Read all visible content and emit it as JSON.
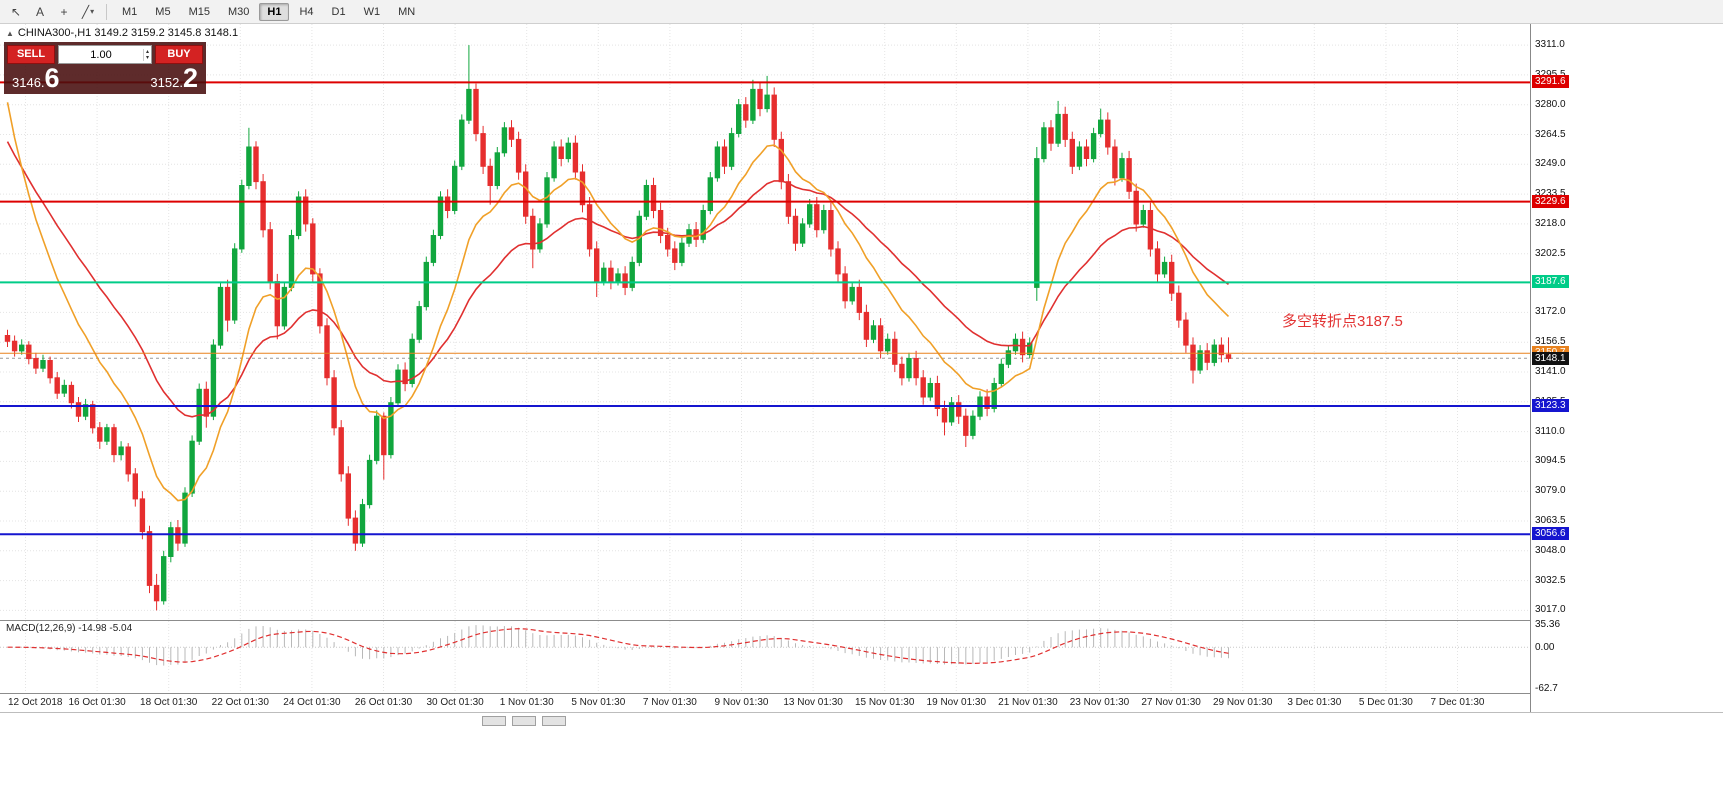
{
  "toolbar": {
    "icons": [
      {
        "name": "cursor",
        "glyph": "↖"
      },
      {
        "name": "text-tool",
        "glyph": "A"
      },
      {
        "name": "crosshair",
        "glyph": "+"
      },
      {
        "name": "trendline",
        "glyph": "╱"
      },
      {
        "name": "caret-down",
        "glyph": "▾"
      }
    ],
    "timeframes": [
      "M1",
      "M5",
      "M15",
      "M30",
      "H1",
      "H4",
      "D1",
      "W1",
      "MN"
    ],
    "active_timeframe": "H1"
  },
  "header": {
    "collapse_glyph": "▲",
    "symbol_ohlc": "CHINA300-,H1 3149.2 3159.2 3145.8 3148.1"
  },
  "trade_panel": {
    "sell_label": "SELL",
    "buy_label": "BUY",
    "volume": "1.00",
    "volume_up_glyph": "▴",
    "volume_down_glyph": "▾",
    "sell_price_small": "3146.",
    "sell_price_big": "6",
    "buy_price_small": "3152.",
    "buy_price_big": "2"
  },
  "annotation": {
    "text": "多空转折点3187.5",
    "color": "#e23333"
  },
  "chart_data": {
    "type": "candlestick",
    "symbol": "CHINA300-",
    "timeframe": "H1",
    "title": "CHINA300- H1",
    "ylim": [
      3017.0,
      3311.0
    ],
    "current_price": 3148.1,
    "colors": {
      "up": "#11a63e",
      "down": "#e62e2e",
      "ma_fast": "#f0a028",
      "ma_slow": "#e03030",
      "grid": "#e4e4e4"
    },
    "y_ticks": [
      "3311.0",
      "3295.5",
      "3280.0",
      "3264.5",
      "3249.0",
      "3233.5",
      "3218.0",
      "3202.5",
      "3172.0",
      "3156.5",
      "3141.0",
      "3125.5",
      "3110.0",
      "3094.5",
      "3079.0",
      "3063.5",
      "3048.0",
      "3032.5",
      "3017.0"
    ],
    "levels": [
      {
        "price": 3291.6,
        "label": "3291.6",
        "color": "#dd0000",
        "width": 2
      },
      {
        "price": 3229.6,
        "label": "3229.6",
        "color": "#dd0000",
        "width": 2
      },
      {
        "price": 3187.6,
        "label": "3187.6",
        "color": "#00cc88",
        "width": 2
      },
      {
        "price": 3150.7,
        "label": "3150.7",
        "color": "#e8821e",
        "width": 1
      },
      {
        "price": 3123.3,
        "label": "3123.3",
        "color": "#1515cf",
        "width": 2
      },
      {
        "price": 3056.6,
        "label": "3056.6",
        "color": "#1515cf",
        "width": 2
      }
    ],
    "current_price_badge": {
      "label": "3148.1",
      "bg": "#111111"
    },
    "x_labels": [
      "12 Oct 2018",
      "16 Oct 01:30",
      "18 Oct 01:30",
      "22 Oct 01:30",
      "24 Oct 01:30",
      "26 Oct 01:30",
      "30 Oct 01:30",
      "1 Nov 01:30",
      "5 Nov 01:30",
      "7 Nov 01:30",
      "9 Nov 01:30",
      "13 Nov 01:30",
      "15 Nov 01:30",
      "19 Nov 01:30",
      "21 Nov 01:30",
      "23 Nov 01:30",
      "27 Nov 01:30",
      "29 Nov 01:30",
      "3 Dec 01:30",
      "5 Dec 01:30",
      "7 Dec 01:30"
    ],
    "overlays": [
      {
        "name": "ma-fast",
        "color": "#f0a028",
        "period": 13
      },
      {
        "name": "ma-slow",
        "color": "#e03030",
        "period": 30
      }
    ],
    "indicator": {
      "name": "MACD",
      "label": "MACD(12,26,9) -14.98 -5.04",
      "axis_values": [
        "35.36",
        "0.00",
        "-62.7"
      ],
      "ylim": [
        -70,
        40
      ]
    },
    "ohlc": [
      [
        3160,
        3163,
        3154,
        3157
      ],
      [
        3157,
        3160,
        3149,
        3152
      ],
      [
        3152,
        3158,
        3150,
        3155
      ],
      [
        3155,
        3157,
        3145,
        3148
      ],
      [
        3148,
        3151,
        3140,
        3143
      ],
      [
        3143,
        3150,
        3141,
        3147
      ],
      [
        3147,
        3149,
        3135,
        3138
      ],
      [
        3138,
        3141,
        3127,
        3130
      ],
      [
        3130,
        3137,
        3128,
        3134
      ],
      [
        3134,
        3136,
        3122,
        3125
      ],
      [
        3125,
        3128,
        3115,
        3118
      ],
      [
        3118,
        3127,
        3116,
        3124
      ],
      [
        3124,
        3126,
        3109,
        3112
      ],
      [
        3112,
        3115,
        3101,
        3105
      ],
      [
        3105,
        3114,
        3103,
        3112
      ],
      [
        3112,
        3114,
        3094,
        3098
      ],
      [
        3098,
        3105,
        3095,
        3102
      ],
      [
        3102,
        3104,
        3084,
        3088
      ],
      [
        3088,
        3091,
        3071,
        3075
      ],
      [
        3075,
        3079,
        3054,
        3058
      ],
      [
        3058,
        3061,
        3026,
        3030
      ],
      [
        3030,
        3036,
        3017,
        3022
      ],
      [
        3022,
        3048,
        3020,
        3045
      ],
      [
        3045,
        3063,
        3042,
        3060
      ],
      [
        3060,
        3064,
        3048,
        3052
      ],
      [
        3052,
        3081,
        3050,
        3078
      ],
      [
        3078,
        3108,
        3076,
        3105
      ],
      [
        3105,
        3135,
        3103,
        3132
      ],
      [
        3132,
        3136,
        3112,
        3118
      ],
      [
        3118,
        3158,
        3116,
        3155
      ],
      [
        3155,
        3188,
        3153,
        3185
      ],
      [
        3185,
        3189,
        3162,
        3168
      ],
      [
        3168,
        3208,
        3166,
        3205
      ],
      [
        3205,
        3241,
        3203,
        3238
      ],
      [
        3238,
        3268,
        3236,
        3258
      ],
      [
        3258,
        3261,
        3236,
        3240
      ],
      [
        3240,
        3244,
        3211,
        3215
      ],
      [
        3215,
        3219,
        3184,
        3188
      ],
      [
        3188,
        3192,
        3158,
        3165
      ],
      [
        3165,
        3188,
        3163,
        3185
      ],
      [
        3185,
        3215,
        3183,
        3212
      ],
      [
        3212,
        3235,
        3210,
        3232
      ],
      [
        3232,
        3236,
        3214,
        3218
      ],
      [
        3218,
        3221,
        3188,
        3192
      ],
      [
        3192,
        3195,
        3161,
        3165
      ],
      [
        3165,
        3169,
        3134,
        3138
      ],
      [
        3138,
        3142,
        3108,
        3112
      ],
      [
        3112,
        3116,
        3084,
        3088
      ],
      [
        3088,
        3092,
        3061,
        3065
      ],
      [
        3065,
        3069,
        3048,
        3052
      ],
      [
        3052,
        3075,
        3050,
        3072
      ],
      [
        3072,
        3098,
        3070,
        3095
      ],
      [
        3095,
        3121,
        3093,
        3118
      ],
      [
        3118,
        3120,
        3085,
        3098
      ],
      [
        3098,
        3128,
        3096,
        3125
      ],
      [
        3125,
        3145,
        3123,
        3142
      ],
      [
        3142,
        3146,
        3131,
        3135
      ],
      [
        3135,
        3161,
        3133,
        3158
      ],
      [
        3158,
        3178,
        3156,
        3175
      ],
      [
        3175,
        3201,
        3173,
        3198
      ],
      [
        3198,
        3215,
        3196,
        3212
      ],
      [
        3212,
        3235,
        3210,
        3232
      ],
      [
        3232,
        3236,
        3221,
        3225
      ],
      [
        3225,
        3251,
        3223,
        3248
      ],
      [
        3248,
        3275,
        3246,
        3272
      ],
      [
        3272,
        3311,
        3270,
        3288
      ],
      [
        3288,
        3291,
        3261,
        3265
      ],
      [
        3265,
        3269,
        3244,
        3248
      ],
      [
        3248,
        3252,
        3228,
        3238
      ],
      [
        3238,
        3258,
        3236,
        3255
      ],
      [
        3255,
        3271,
        3253,
        3268
      ],
      [
        3268,
        3272,
        3258,
        3262
      ],
      [
        3262,
        3266,
        3241,
        3245
      ],
      [
        3245,
        3249,
        3218,
        3222
      ],
      [
        3222,
        3226,
        3195,
        3205
      ],
      [
        3205,
        3221,
        3203,
        3218
      ],
      [
        3218,
        3245,
        3216,
        3242
      ],
      [
        3242,
        3261,
        3240,
        3258
      ],
      [
        3258,
        3262,
        3248,
        3252
      ],
      [
        3252,
        3263,
        3250,
        3260
      ],
      [
        3260,
        3264,
        3241,
        3245
      ],
      [
        3245,
        3249,
        3224,
        3228
      ],
      [
        3228,
        3232,
        3201,
        3205
      ],
      [
        3205,
        3209,
        3180,
        3188
      ],
      [
        3188,
        3198,
        3186,
        3195
      ],
      [
        3195,
        3199,
        3184,
        3188
      ],
      [
        3188,
        3195,
        3186,
        3192
      ],
      [
        3192,
        3196,
        3181,
        3185
      ],
      [
        3185,
        3201,
        3183,
        3198
      ],
      [
        3198,
        3225,
        3196,
        3222
      ],
      [
        3222,
        3241,
        3220,
        3238
      ],
      [
        3238,
        3242,
        3221,
        3225
      ],
      [
        3225,
        3229,
        3208,
        3212
      ],
      [
        3212,
        3216,
        3201,
        3205
      ],
      [
        3205,
        3209,
        3194,
        3198
      ],
      [
        3198,
        3211,
        3196,
        3208
      ],
      [
        3208,
        3218,
        3206,
        3215
      ],
      [
        3215,
        3219,
        3206,
        3210
      ],
      [
        3210,
        3228,
        3208,
        3225
      ],
      [
        3225,
        3245,
        3223,
        3242
      ],
      [
        3242,
        3261,
        3240,
        3258
      ],
      [
        3258,
        3262,
        3244,
        3248
      ],
      [
        3248,
        3268,
        3246,
        3265
      ],
      [
        3265,
        3283,
        3263,
        3280
      ],
      [
        3280,
        3284,
        3268,
        3272
      ],
      [
        3272,
        3293,
        3270,
        3288
      ],
      [
        3288,
        3292,
        3274,
        3278
      ],
      [
        3278,
        3295,
        3276,
        3285
      ],
      [
        3285,
        3289,
        3258,
        3262
      ],
      [
        3262,
        3266,
        3236,
        3240
      ],
      [
        3240,
        3244,
        3218,
        3222
      ],
      [
        3222,
        3226,
        3204,
        3208
      ],
      [
        3208,
        3221,
        3206,
        3218
      ],
      [
        3218,
        3231,
        3216,
        3228
      ],
      [
        3228,
        3232,
        3211,
        3215
      ],
      [
        3215,
        3228,
        3213,
        3225
      ],
      [
        3225,
        3229,
        3201,
        3205
      ],
      [
        3205,
        3209,
        3188,
        3192
      ],
      [
        3192,
        3196,
        3174,
        3178
      ],
      [
        3178,
        3188,
        3176,
        3185
      ],
      [
        3185,
        3189,
        3168,
        3172
      ],
      [
        3172,
        3176,
        3154,
        3158
      ],
      [
        3158,
        3168,
        3156,
        3165
      ],
      [
        3165,
        3169,
        3148,
        3152
      ],
      [
        3152,
        3161,
        3150,
        3158
      ],
      [
        3158,
        3162,
        3141,
        3145
      ],
      [
        3145,
        3149,
        3134,
        3138
      ],
      [
        3138,
        3151,
        3136,
        3148
      ],
      [
        3148,
        3152,
        3134,
        3138
      ],
      [
        3138,
        3142,
        3124,
        3128
      ],
      [
        3128,
        3138,
        3126,
        3135
      ],
      [
        3135,
        3139,
        3118,
        3122
      ],
      [
        3122,
        3126,
        3108,
        3115
      ],
      [
        3115,
        3128,
        3113,
        3125
      ],
      [
        3125,
        3129,
        3114,
        3118
      ],
      [
        3118,
        3122,
        3102,
        3108
      ],
      [
        3108,
        3121,
        3106,
        3118
      ],
      [
        3118,
        3131,
        3116,
        3128
      ],
      [
        3128,
        3132,
        3118,
        3122
      ],
      [
        3122,
        3138,
        3120,
        3135
      ],
      [
        3135,
        3148,
        3133,
        3145
      ],
      [
        3145,
        3155,
        3143,
        3152
      ],
      [
        3152,
        3161,
        3150,
        3158
      ],
      [
        3158,
        3162,
        3146,
        3150
      ],
      [
        3150,
        3159,
        3148,
        3156
      ],
      [
        3185,
        3258,
        3178,
        3252
      ],
      [
        3252,
        3271,
        3250,
        3268
      ],
      [
        3268,
        3272,
        3256,
        3260
      ],
      [
        3260,
        3282,
        3258,
        3275
      ],
      [
        3275,
        3279,
        3258,
        3262
      ],
      [
        3262,
        3266,
        3244,
        3248
      ],
      [
        3248,
        3261,
        3246,
        3258
      ],
      [
        3258,
        3262,
        3248,
        3252
      ],
      [
        3252,
        3268,
        3250,
        3265
      ],
      [
        3265,
        3278,
        3263,
        3272
      ],
      [
        3272,
        3276,
        3254,
        3258
      ],
      [
        3258,
        3262,
        3238,
        3242
      ],
      [
        3242,
        3255,
        3240,
        3252
      ],
      [
        3252,
        3256,
        3231,
        3235
      ],
      [
        3235,
        3239,
        3214,
        3218
      ],
      [
        3218,
        3228,
        3216,
        3225
      ],
      [
        3225,
        3229,
        3201,
        3205
      ],
      [
        3205,
        3209,
        3188,
        3192
      ],
      [
        3192,
        3201,
        3190,
        3198
      ],
      [
        3198,
        3202,
        3178,
        3182
      ],
      [
        3182,
        3186,
        3164,
        3168
      ],
      [
        3168,
        3172,
        3151,
        3155
      ],
      [
        3155,
        3159,
        3135,
        3142
      ],
      [
        3142,
        3155,
        3140,
        3152
      ],
      [
        3152,
        3156,
        3142,
        3146
      ],
      [
        3146,
        3158,
        3144,
        3155
      ],
      [
        3155,
        3159,
        3146,
        3150
      ],
      [
        3150,
        3159,
        3146,
        3148.1
      ]
    ]
  }
}
